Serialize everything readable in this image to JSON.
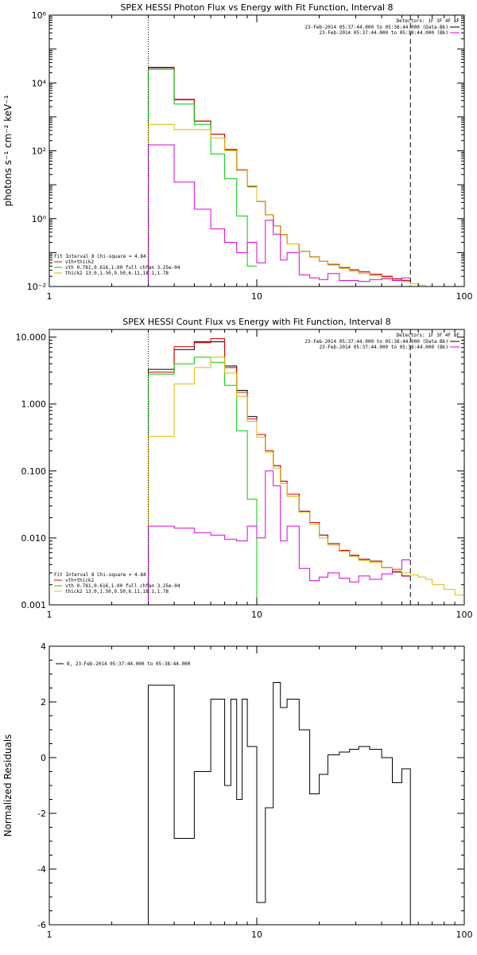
{
  "chart_data": [
    {
      "type": "line",
      "title": "SPEX HESSI Photon Flux vs Energy with Fit Function, Interval 8",
      "ylabel": "photons s⁻¹ cm⁻² keV⁻¹",
      "xscale": "log",
      "yscale": "log",
      "xlim": [
        1,
        100
      ],
      "ylim": [
        0.01,
        1000000
      ],
      "xticks": [
        {
          "v": 1,
          "label": "1"
        },
        {
          "v": 10,
          "label": "10"
        },
        {
          "v": 100,
          "label": "100"
        }
      ],
      "yticks": [
        {
          "v": 0.01,
          "label": "10⁻²"
        },
        {
          "v": 1,
          "label": "10⁰"
        },
        {
          "v": 100,
          "label": "10²"
        },
        {
          "v": 10000,
          "label": "10⁴"
        },
        {
          "v": 1000000,
          "label": "10⁶"
        }
      ],
      "vlines": [
        {
          "x": 3,
          "style": "dotted"
        },
        {
          "x": 55,
          "style": "dashed"
        }
      ],
      "legend_top_right": {
        "title": "Detectors: 1F 3F 4F 8F",
        "entries": [
          {
            "text": "23-Feb-2014 05:37:44.000 to 05:38:44.000 (Data-Bk)",
            "color": "#000000"
          },
          {
            "text": "23-Feb-2014 05:37:44.000 to 05:38:44.000 (Bk)",
            "color": "#dd00dd"
          }
        ]
      },
      "legend_bottom_left": {
        "title": "Fit Interval  8    Chi-square = 4.84",
        "entries": [
          {
            "text": "vth+thick2",
            "color": "#dd0000"
          },
          {
            "text": "vth 0.781,0.616,1.00  full chfan 3.25e-04",
            "color": "#00cc00"
          },
          {
            "text": "thick2 13.0,1.50,9.50,6.11,18.1,1.78",
            "color": "#ddbb00"
          }
        ]
      },
      "series": [
        {
          "color": "#000000",
          "edges": [
            3,
            4,
            5,
            6,
            7,
            8,
            9,
            10,
            11,
            12,
            13,
            14,
            16,
            18,
            20,
            22,
            25,
            28,
            31,
            35,
            40,
            45,
            50,
            55
          ],
          "values": [
            28000,
            3200,
            750,
            310,
            110,
            28,
            9,
            3.2,
            1.3,
            0.62,
            0.34,
            0.18,
            0.11,
            0.075,
            0.055,
            0.045,
            0.036,
            0.031,
            0.027,
            0.023,
            0.02,
            0.017,
            0.015
          ]
        },
        {
          "color": "#dd0000",
          "edges": [
            3,
            4,
            5,
            6,
            7,
            8,
            9,
            10,
            11,
            12,
            13,
            14,
            16,
            18,
            20,
            22,
            25,
            28,
            31,
            35,
            40,
            45,
            50,
            55
          ],
          "values": [
            29000,
            3300,
            760,
            310,
            108,
            27,
            8.6,
            3.2,
            1.3,
            0.62,
            0.34,
            0.18,
            0.11,
            0.075,
            0.055,
            0.045,
            0.036,
            0.031,
            0.027,
            0.023,
            0.02,
            0.017,
            0.015
          ]
        },
        {
          "color": "#00cc00",
          "edges": [
            3,
            4,
            5,
            6,
            7,
            8,
            9,
            10
          ],
          "values": [
            25000,
            2400,
            600,
            80,
            15,
            1.2,
            0.04
          ]
        },
        {
          "color": "#ddbb00",
          "edges": [
            3,
            4,
            5,
            6,
            7,
            8,
            9,
            10,
            11,
            12,
            13,
            14,
            16,
            18,
            20,
            22,
            25,
            28,
            31,
            35,
            40,
            45,
            50,
            55,
            60,
            65,
            70,
            80
          ],
          "values": [
            600,
            420,
            420,
            240,
            100,
            28,
            8.6,
            3.2,
            1.3,
            0.62,
            0.34,
            0.18,
            0.11,
            0.075,
            0.055,
            0.043,
            0.034,
            0.028,
            0.024,
            0.021,
            0.018,
            0.016,
            0.014,
            0.012,
            0.011,
            0.01,
            0.01
          ]
        },
        {
          "color": "#dd00dd",
          "edges": [
            3,
            4,
            5,
            6,
            7,
            8,
            9,
            10,
            11,
            12,
            13,
            14,
            16,
            18,
            20,
            22,
            25,
            28,
            31,
            35,
            40,
            45,
            50,
            55
          ],
          "values": [
            150,
            12,
            1.9,
            0.5,
            0.2,
            0.1,
            0.2,
            0.05,
            0.9,
            0.35,
            0.06,
            0.1,
            0.022,
            0.018,
            0.016,
            0.024,
            0.015,
            0.015,
            0.014,
            0.016,
            0.017,
            0.015,
            0.018
          ]
        }
      ]
    },
    {
      "type": "line",
      "title": "SPEX HESSI Count Flux vs Energy with Fit Function, Interval 8",
      "ylabel": "",
      "xscale": "log",
      "yscale": "log",
      "xlim": [
        1,
        100
      ],
      "ylim": [
        0.001,
        13
      ],
      "xticks": [
        {
          "v": 1,
          "label": "1"
        },
        {
          "v": 10,
          "label": "10"
        },
        {
          "v": 100,
          "label": "100"
        }
      ],
      "yticks": [
        {
          "v": 0.001,
          "label": "0.001"
        },
        {
          "v": 0.01,
          "label": "0.010"
        },
        {
          "v": 0.1,
          "label": "0.100"
        },
        {
          "v": 1,
          "label": "1.000"
        },
        {
          "v": 10,
          "label": "10.000"
        }
      ],
      "vlines": [
        {
          "x": 3,
          "style": "dotted"
        },
        {
          "x": 55,
          "style": "dashed"
        }
      ],
      "legend_top_right": {
        "title": "Detectors: 1F 3F 4F 8F",
        "entries": [
          {
            "text": "23-Feb-2014 05:37:44.000 to 05:38:44.000 (Data-Bk)",
            "color": "#000000"
          },
          {
            "text": "23-Feb-2014 05:37:44.000 to 05:38:44.000 (Bk)",
            "color": "#dd00dd"
          }
        ]
      },
      "legend_bottom_left": {
        "title": "Fit Interval  8    Chi-square = 4.84",
        "entries": [
          {
            "text": "vth+thick2",
            "color": "#dd0000"
          },
          {
            "text": "vth 0.781,0.616,1.00  full chfan 3.25e-04",
            "color": "#00cc00"
          },
          {
            "text": "thick2 13.0,1.50,9.50,6.11,18.1,1.78",
            "color": "#ddbb00"
          }
        ]
      },
      "series": [
        {
          "color": "#000000",
          "edges": [
            3,
            4,
            5,
            6,
            7,
            8,
            9,
            10,
            11,
            12,
            13,
            14,
            16,
            18,
            20,
            22,
            25,
            28,
            31,
            35,
            40,
            45,
            50,
            55
          ],
          "values": [
            3.3,
            6.5,
            8.5,
            8.5,
            3.7,
            1.6,
            0.65,
            0.35,
            0.2,
            0.12,
            0.07,
            0.045,
            0.025,
            0.017,
            0.011,
            0.0082,
            0.0065,
            0.0055,
            0.0048,
            0.0045,
            0.0036,
            0.0031,
            0.0027
          ]
        },
        {
          "color": "#dd0000",
          "edges": [
            3,
            4,
            5,
            6,
            7,
            8,
            9,
            10,
            11,
            12,
            13,
            14,
            16,
            18,
            20,
            22,
            25,
            28,
            31,
            35,
            40,
            45,
            50,
            55
          ],
          "values": [
            3.0,
            7.2,
            8.2,
            9.5,
            3.5,
            1.5,
            0.6,
            0.35,
            0.2,
            0.12,
            0.07,
            0.045,
            0.025,
            0.017,
            0.011,
            0.0082,
            0.0065,
            0.0055,
            0.0048,
            0.0045,
            0.0036,
            0.0031,
            0.0027
          ]
        },
        {
          "color": "#00cc00",
          "edges": [
            3,
            4,
            5,
            6,
            7,
            8,
            9,
            10,
            11
          ],
          "values": [
            2.8,
            4.0,
            5.0,
            4.2,
            1.9,
            0.4,
            0.038,
            0.001
          ]
        },
        {
          "color": "#ddbb00",
          "edges": [
            3,
            4,
            5,
            6,
            7,
            8,
            9,
            10,
            11,
            12,
            13,
            14,
            16,
            18,
            20,
            22,
            25,
            28,
            31,
            35,
            40,
            45,
            50,
            55,
            60,
            65,
            70,
            80,
            90,
            100
          ],
          "values": [
            0.33,
            2.0,
            3.5,
            5.0,
            2.9,
            1.3,
            0.55,
            0.32,
            0.19,
            0.11,
            0.065,
            0.042,
            0.024,
            0.016,
            0.01,
            0.0078,
            0.0063,
            0.0053,
            0.0046,
            0.0043,
            0.0036,
            0.0032,
            0.003,
            0.0028,
            0.0026,
            0.0024,
            0.002,
            0.0017,
            0.0014
          ]
        },
        {
          "color": "#dd00dd",
          "edges": [
            3,
            4,
            5,
            6,
            7,
            8,
            9,
            10,
            11,
            12,
            13,
            14,
            16,
            18,
            20,
            22,
            25,
            28,
            31,
            35,
            40,
            45,
            50,
            55
          ],
          "values": [
            0.015,
            0.014,
            0.012,
            0.011,
            0.0095,
            0.009,
            0.015,
            0.01,
            0.1,
            0.06,
            0.009,
            0.015,
            0.0035,
            0.0023,
            0.0026,
            0.003,
            0.0025,
            0.0022,
            0.0027,
            0.0024,
            0.0029,
            0.0034,
            0.0047
          ]
        }
      ]
    },
    {
      "type": "line",
      "title": "",
      "ylabel": "Normalized Residuals",
      "xscale": "log",
      "yscale": "linear",
      "xlim": [
        1,
        100
      ],
      "ylim": [
        -6,
        4
      ],
      "xticks": [
        {
          "v": 1,
          "label": "1"
        },
        {
          "v": 10,
          "label": "10"
        },
        {
          "v": 100,
          "label": "100"
        }
      ],
      "yticks": [
        {
          "v": -6,
          "label": "-6"
        },
        {
          "v": -4,
          "label": "-4"
        },
        {
          "v": -2,
          "label": "-2"
        },
        {
          "v": 0,
          "label": "0"
        },
        {
          "v": 2,
          "label": "2"
        },
        {
          "v": 4,
          "label": "4"
        }
      ],
      "vlines": [],
      "legend_top_right": null,
      "legend_top_left": {
        "entries": [
          {
            "text": "8, 23-Feb-2014 05:37:44.000 to 05:38:44.000",
            "color": "#000000"
          }
        ]
      },
      "legend_bottom_left": null,
      "series": [
        {
          "color": "#000000",
          "edges": [
            3,
            4,
            5,
            6,
            7,
            7.5,
            8,
            8.5,
            9,
            10,
            11,
            12,
            13,
            14,
            16,
            18,
            20,
            22,
            25,
            28,
            31,
            35,
            40,
            45,
            50,
            55
          ],
          "values": [
            2.6,
            -2.9,
            -0.5,
            2.1,
            -1.0,
            2.1,
            -1.5,
            2.1,
            0.4,
            -5.2,
            -1.8,
            2.7,
            1.8,
            2.1,
            1.0,
            -1.3,
            -0.6,
            0.1,
            0.2,
            0.3,
            0.4,
            0.3,
            0.0,
            -0.9,
            -0.4
          ]
        }
      ]
    }
  ]
}
